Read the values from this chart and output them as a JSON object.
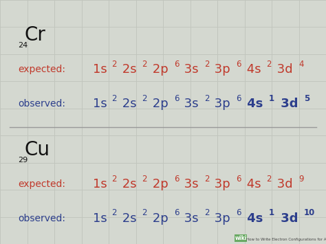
{
  "background_color": "#d4d8d0",
  "grid_color": "#c0c4bc",
  "text_color_dark": "#111111",
  "text_color_red": "#c0392b",
  "text_color_blue": "#2c3e8c",
  "cr_atomic": "24",
  "cr_symbol": "Cr",
  "cu_atomic": "29",
  "cu_symbol": "Cu",
  "label_expected": "expected:",
  "label_observed": "observed:",
  "cr_expected_parts": [
    {
      "base": "1s",
      "sup": "2"
    },
    {
      "base": " 2s",
      "sup": "2"
    },
    {
      "base": " 2p",
      "sup": "6"
    },
    {
      "base": " 3s",
      "sup": "2"
    },
    {
      "base": " 3p",
      "sup": "6"
    },
    {
      "base": " 4s",
      "sup": "2"
    },
    {
      "base": " 3d",
      "sup": "4"
    }
  ],
  "cr_observed_parts": [
    {
      "base": "1s",
      "sup": "2",
      "bold": false
    },
    {
      "base": " 2s",
      "sup": "2",
      "bold": false
    },
    {
      "base": " 2p",
      "sup": "6",
      "bold": false
    },
    {
      "base": " 3s",
      "sup": "2",
      "bold": false
    },
    {
      "base": " 3p",
      "sup": "6",
      "bold": false
    },
    {
      "base": " 4s",
      "sup": "1",
      "bold": true
    },
    {
      "base": " 3d",
      "sup": "5",
      "bold": true
    }
  ],
  "cu_expected_parts": [
    {
      "base": "1s",
      "sup": "2"
    },
    {
      "base": " 2s",
      "sup": "2"
    },
    {
      "base": " 2p",
      "sup": "6"
    },
    {
      "base": " 3s",
      "sup": "2"
    },
    {
      "base": " 3p",
      "sup": "6"
    },
    {
      "base": " 4s",
      "sup": "2"
    },
    {
      "base": " 3d",
      "sup": "9"
    }
  ],
  "cu_observed_parts": [
    {
      "base": "1s",
      "sup": "2",
      "bold": false
    },
    {
      "base": " 2s",
      "sup": "2",
      "bold": false
    },
    {
      "base": " 2p",
      "sup": "6",
      "bold": false
    },
    {
      "base": " 3s",
      "sup": "2",
      "bold": false
    },
    {
      "base": " 3p",
      "sup": "6",
      "bold": false
    },
    {
      "base": " 4s",
      "sup": "1",
      "bold": true
    },
    {
      "base": " 3d",
      "sup": "10",
      "bold": true
    }
  ],
  "watermark_text": "How to Write Electron Configurations for Atoms of Any Element",
  "wiki_label": "wiki",
  "figsize": [
    4.74,
    3.55
  ],
  "dpi": 100,
  "base_fontsize": 13,
  "sup_fontsize": 8.5,
  "label_fontsize": 10,
  "symbol_fontsize": 20,
  "atomic_fontsize": 8,
  "grid_nx": 12,
  "grid_ny": 9
}
